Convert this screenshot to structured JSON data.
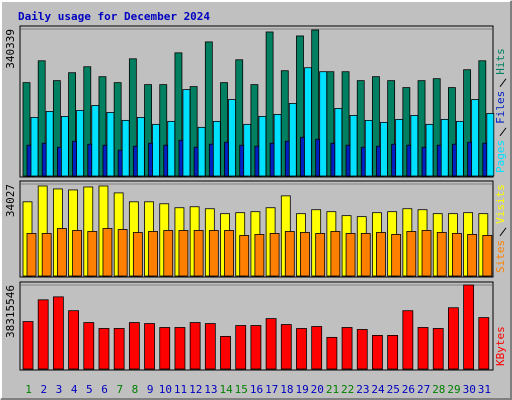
{
  "chart_data": {
    "type": "bar",
    "title": "Daily usage for December 2024",
    "categories": [
      "1",
      "2",
      "3",
      "4",
      "5",
      "6",
      "7",
      "8",
      "9",
      "10",
      "11",
      "12",
      "13",
      "14",
      "15",
      "16",
      "17",
      "18",
      "19",
      "20",
      "21",
      "22",
      "23",
      "24",
      "25",
      "26",
      "27",
      "28",
      "29",
      "30",
      "31"
    ],
    "category_colors": [
      "#008000",
      "#0000c0",
      "#0000c0",
      "#0000c0",
      "#0000c0",
      "#0000c0",
      "#008000",
      "#008000",
      "#0000c0",
      "#0000c0",
      "#0000c0",
      "#0000c0",
      "#0000c0",
      "#008000",
      "#008000",
      "#0000c0",
      "#0000c0",
      "#0000c0",
      "#0000c0",
      "#0000c0",
      "#008000",
      "#008000",
      "#0000c0",
      "#0000c0",
      "#0000c0",
      "#0000c0",
      "#0000c0",
      "#008000",
      "#008000",
      "#0000c0",
      "#0000c0"
    ],
    "panels": [
      {
        "ylim": [
          0,
          340339
        ],
        "yticks": [
          340339
        ],
        "series": [
          {
            "name": "Pages",
            "color": "#00e0ff",
            "values": [
              135676,
              149474,
              137976,
              151774,
              163272,
              147174,
              128778,
              135676,
              119579,
              126478,
              200065,
              112680,
              126478,
              177069,
              119579,
              137976,
              142575,
              167871,
              250656,
              241458,
              156373,
              140276,
              128778,
              124178,
              131077,
              140276,
              119579,
              131077,
              126478,
              177069,
              144875
            ]
          },
          {
            "name": "Files",
            "color": "#0020c0",
            "values": [
              71300,
              75900,
              66700,
              80500,
              73600,
              71300,
              59800,
              69000,
              75900,
              71300,
              82800,
              66700,
              73600,
              78200,
              71300,
              69000,
              75900,
              80500,
              89700,
              85100,
              75900,
              71300,
              66700,
              69000,
              73600,
              71300,
              66700,
              71300,
              73600,
              78200,
              75900
            ]
          },
          {
            "name": "Hits",
            "color": "#008060",
            "values": [
              216162,
              266754,
              220762,
              239158,
              252956,
              229960,
              216162,
              271353,
              211563,
              211563,
              285150,
              206964,
              310446,
              216162,
              269053,
              211563,
              333442,
              243758,
              324244,
              338041,
              241458,
              241458,
              220762,
              229960,
              220762,
              204664,
              220762,
              225361,
              204664,
              246057,
              266754
            ]
          }
        ]
      },
      {
        "ylim": [
          0,
          34027
        ],
        "yticks": [
          34027
        ],
        "series": [
          {
            "name": "Sites",
            "color": "#ff8000",
            "values": [
              15738,
              15738,
              17568,
              16836,
              16470,
              17568,
              17202,
              16104,
              16470,
              16836,
              16836,
              16836,
              16836,
              16836,
              15006,
              15372,
              15738,
              16470,
              16104,
              15738,
              16470,
              15738,
              15738,
              16104,
              15372,
              16470,
              16836,
              16104,
              15738,
              15372,
              15006
            ]
          },
          {
            "name": "Visits",
            "color": "#ffff00",
            "values": [
              27441,
              33295,
              32198,
              31831,
              32929,
              33295,
              30734,
              27441,
              27441,
              26710,
              25246,
              25612,
              24880,
              23050,
              23416,
              23782,
              25246,
              29636,
              23050,
              24514,
              23782,
              22319,
              21953,
              23416,
              23782,
              24880,
              24514,
              23050,
              23050,
              23416,
              23050
            ]
          }
        ]
      },
      {
        "ylim": [
          0,
          38315546
        ],
        "yticks": [
          38315546
        ],
        "series": [
          {
            "name": "KBytes",
            "color": "#ff0000",
            "values": [
              21637008,
              31553970,
              32906283,
              26595489,
              21186237,
              18481611,
              18481611,
              21186237,
              20735466,
              18932382,
              18932382,
              21186237,
              20735466,
              14875443,
              19833924,
              19833924,
              22989321,
              20284695,
              18481611,
              19383153,
              14424672,
              18932382,
              18030840,
              15326214,
              15326214,
              26595489,
              18932382,
              18481611,
              27947802,
              38315546,
              23440092
            ]
          }
        ]
      }
    ]
  }
}
